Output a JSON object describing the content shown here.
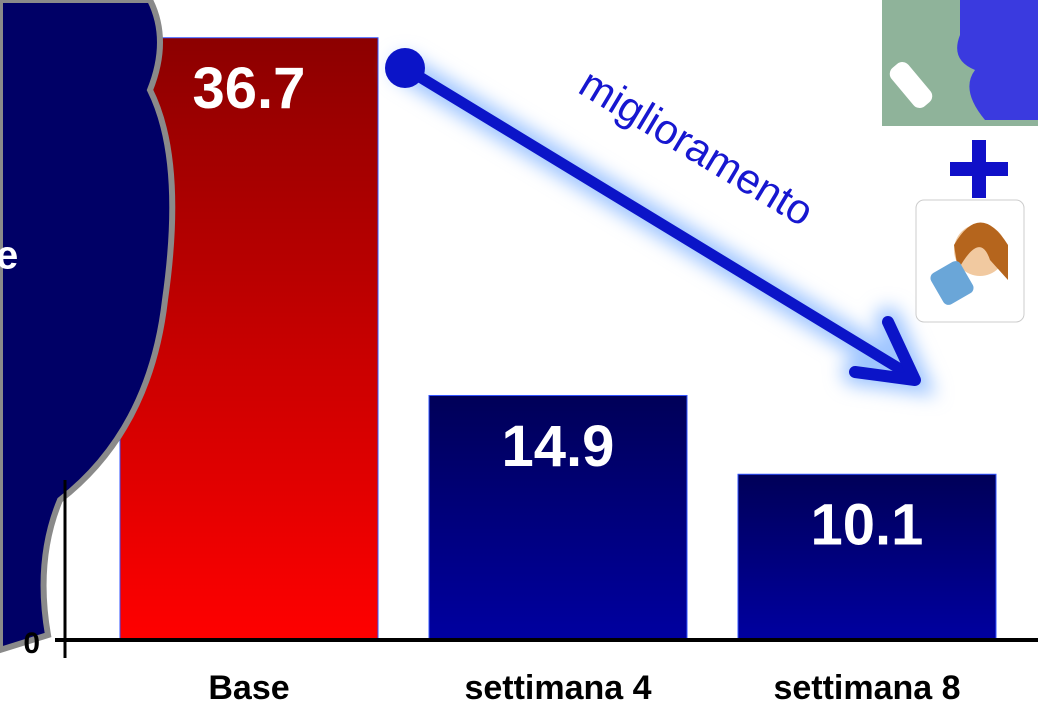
{
  "chart_data": {
    "type": "bar",
    "categories": [
      "Base",
      "settimana 4",
      "settimana 8"
    ],
    "values": [
      36.7,
      14.9,
      10.1
    ],
    "colors": [
      "#ff0000",
      "#0000a0",
      "#0000a0"
    ],
    "ylim": [
      0,
      39
    ],
    "yticks": [
      0
    ],
    "annotation": "miglioramento",
    "callout": "e"
  }
}
